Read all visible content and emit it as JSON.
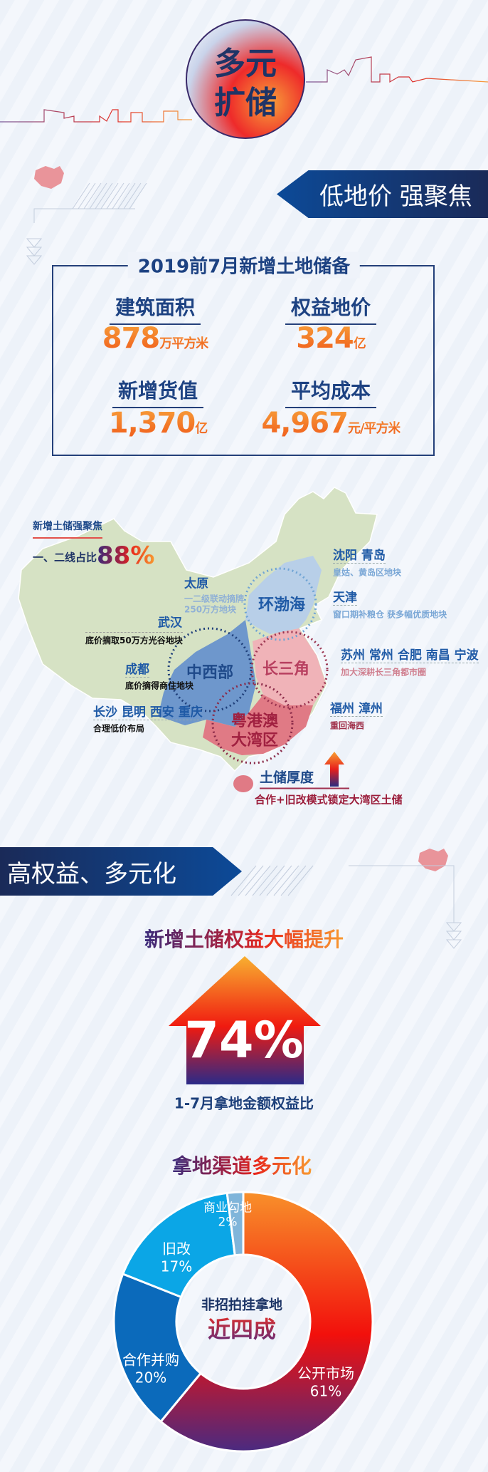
{
  "header": {
    "title_line1": "多元",
    "title_line2": "扩储"
  },
  "section1": {
    "banner": "低地价 强聚焦",
    "box": {
      "title": "2019前7月新增土地储备",
      "metrics": [
        {
          "label": "建筑面积",
          "value": "878",
          "unit": "万平方米"
        },
        {
          "label": "权益地价",
          "value": "324",
          "unit": "亿"
        },
        {
          "label": "新增货值",
          "value": "1,370",
          "unit": "亿"
        },
        {
          "label": "平均成本",
          "value": "4,967",
          "unit": "元/平方米"
        }
      ]
    },
    "map": {
      "focus_title": "新增土储强聚焦",
      "focus_label": "一、二线占比",
      "focus_value": "88%",
      "regions": [
        "环渤海",
        "中西部",
        "长三角",
        "粤港澳",
        "大湾区"
      ],
      "cities": [
        {
          "name": "沈阳 青岛",
          "note": "皇姑、黄岛区地块"
        },
        {
          "name": "天津",
          "note": "窗口期补粮仓 获多幅优质地块"
        },
        {
          "name": "太原",
          "note": "一二级联动摘牌",
          "note2": "250万方地块"
        },
        {
          "name": "武汉",
          "note": "底价摘取50万方光谷地块"
        },
        {
          "name": "成都",
          "note": "底价摘得商住地块"
        },
        {
          "name": "长沙 昆明 西安 重庆",
          "note": "合理低价布局"
        },
        {
          "name": "苏州 常州 合肥 南昌 宁波",
          "note": "加大深耕长三角都市圈"
        },
        {
          "name": "福州 漳州",
          "note": "重回海西"
        }
      ],
      "depth_title": "土储厚度",
      "depth_note": "合作+旧改模式锁定大湾区土储"
    },
    "colors": {
      "green": "#d6e2c4",
      "blue": "#6e97cc",
      "light_blue": "#b8cfe8",
      "pink": "#f0b3b8",
      "red": "#e07a85"
    }
  },
  "section2": {
    "banner": "高权益、多元化",
    "headline": "新增土储权益大幅提升",
    "big_value": "74%",
    "caption": "1-7月拿地金额权益比",
    "donut_title": "拿地渠道多元化",
    "center_line1": "非招拍挂拿地",
    "center_line2": "近四成"
  },
  "chart_data": {
    "type": "pie",
    "title": "拿地渠道多元化",
    "slices": [
      {
        "name": "公开市场",
        "value": 61,
        "label": "61%",
        "color": "gradient orange-red-purple"
      },
      {
        "name": "合作并购",
        "value": 20,
        "label": "20%",
        "color": "#0b6abb"
      },
      {
        "name": "旧改",
        "value": 17,
        "label": "17%",
        "color": "#0ba6e6"
      },
      {
        "name": "商业勾地",
        "value": 2,
        "label": "2%",
        "color": "#80b5da"
      }
    ]
  }
}
